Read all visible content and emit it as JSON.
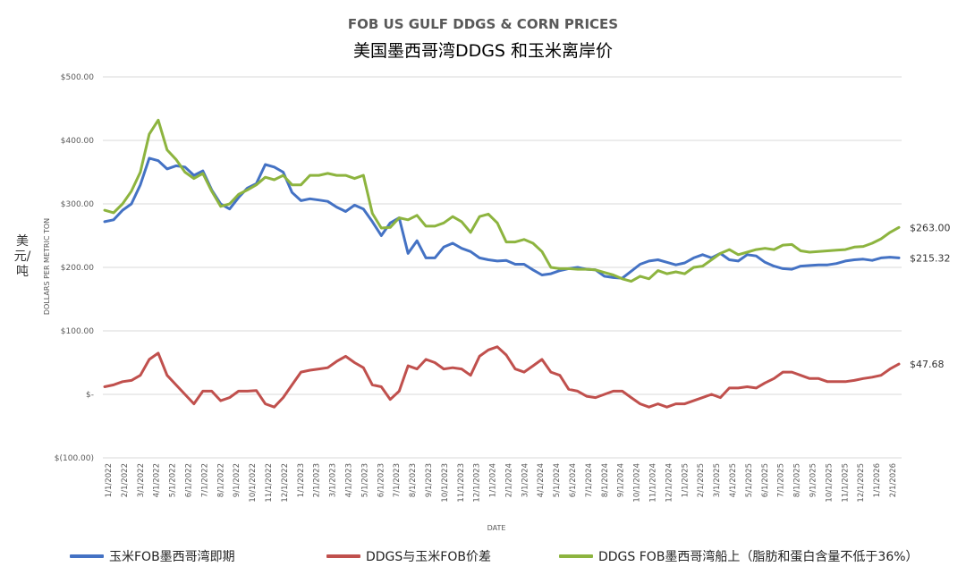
{
  "title": "FOB US GULF DDGS & CORN PRICES",
  "subtitle": "美国墨西哥湾DDGS 和玉米离岸价",
  "unit_label": "美元/吨",
  "colors": {
    "corn": "#4472C4",
    "spread": "#C0504D",
    "ddgs": "#8DB43F",
    "grid": "#D9D9D9",
    "axis_text": "#595959"
  },
  "legend": [
    {
      "name": "玉米FOB墨西哥湾即期",
      "color": "#4472C4"
    },
    {
      "name": "DDGS与玉米FOB价差",
      "color": "#C0504D"
    },
    {
      "name": "DDGS FOB墨西哥湾船上（脂肪和蛋白含量不低于36%）",
      "color": "#8DB43F"
    }
  ],
  "chart_data": {
    "type": "line",
    "title": "FOB US GULF DDGS & CORN PRICES",
    "subtitle": "美国墨西哥湾DDGS 和玉米离岸价",
    "xlabel": "DATE",
    "ylabel": "DOLLARS PER METRIC TON",
    "ylim": [
      -100,
      500
    ],
    "y_ticks": [
      500,
      400,
      300,
      200,
      100,
      0,
      -100
    ],
    "y_tick_labels": [
      "$500.00",
      "$400.00",
      "$300.00",
      "$200.00",
      "$100.00",
      "$-",
      "$(100.00)"
    ],
    "x_tick_labels": [
      "1/1/2022",
      "2/1/2022",
      "3/1/2022",
      "4/1/2022",
      "5/1/2022",
      "6/1/2022",
      "7/1/2022",
      "8/1/2022",
      "9/1/2022",
      "10/1/2022",
      "11/1/2022",
      "12/1/2022",
      "1/1/2023",
      "2/1/2023",
      "3/1/2023",
      "4/1/2023",
      "5/1/2023",
      "6/1/2023",
      "7/1/2023",
      "8/1/2023",
      "9/1/2023",
      "10/1/2023",
      "11/1/2023",
      "12/1/2023",
      "1/1/2024",
      "2/1/2024",
      "3/1/2024",
      "4/1/2024",
      "5/1/2024",
      "6/1/2024",
      "7/1/2024",
      "8/1/2024",
      "9/1/2024",
      "10/1/2024",
      "11/1/2024",
      "12/1/2024",
      "1/1/2025",
      "2/1/2025",
      "3/1/2025",
      "4/1/2025",
      "5/1/2025",
      "6/1/2025",
      "7/1/2025",
      "8/1/2025",
      "9/1/2025",
      "10/1/2025",
      "11/1/2025",
      "12/1/2025",
      "1/1/2026",
      "2/1/2026"
    ],
    "grid": true,
    "legend_position": "bottom",
    "series": [
      {
        "name": "玉米FOB墨西哥湾即期",
        "color": "#4472C4",
        "end_label": "$215.32",
        "values": [
          272,
          275,
          290,
          300,
          330,
          372,
          368,
          355,
          360,
          358,
          345,
          352,
          322,
          300,
          292,
          310,
          325,
          332,
          362,
          358,
          350,
          318,
          305,
          308,
          306,
          304,
          295,
          288,
          298,
          292,
          272,
          250,
          270,
          278,
          222,
          242,
          215,
          215,
          232,
          238,
          230,
          225,
          215,
          212,
          210,
          211,
          205,
          205,
          196,
          188,
          190,
          195,
          198,
          200,
          197,
          196,
          186,
          184,
          183,
          194,
          205,
          210,
          212,
          208,
          204,
          207,
          215,
          220,
          215,
          222,
          212,
          210,
          220,
          218,
          208,
          202,
          198,
          197,
          202,
          203,
          204,
          204,
          206,
          210,
          212,
          213,
          211,
          215,
          216,
          215
        ]
      },
      {
        "name": "DDGS FOB墨西哥湾船上（脂肪和蛋白含量不低于36%）",
        "color": "#8DB43F",
        "end_label": "$263.00",
        "values": [
          290,
          286,
          300,
          320,
          350,
          410,
          432,
          385,
          370,
          350,
          340,
          348,
          320,
          296,
          300,
          315,
          322,
          330,
          342,
          338,
          345,
          330,
          330,
          345,
          345,
          348,
          345,
          345,
          340,
          345,
          285,
          262,
          263,
          278,
          275,
          282,
          265,
          265,
          270,
          280,
          272,
          255,
          280,
          284,
          270,
          240,
          240,
          244,
          238,
          225,
          200,
          198,
          198,
          197,
          197,
          196,
          192,
          188,
          182,
          178,
          186,
          182,
          195,
          190,
          193,
          190,
          200,
          202,
          212,
          222,
          228,
          220,
          224,
          228,
          230,
          228,
          235,
          236,
          226,
          224,
          225,
          226,
          227,
          228,
          232,
          233,
          238,
          245,
          255,
          263
        ]
      },
      {
        "name": "DDGS与玉米FOB价差",
        "color": "#C0504D",
        "end_label": "$47.68",
        "values": [
          12,
          15,
          20,
          22,
          30,
          55,
          65,
          30,
          15,
          0,
          -15,
          5,
          5,
          -10,
          -5,
          5,
          5,
          6,
          -15,
          -20,
          -5,
          15,
          35,
          38,
          40,
          42,
          52,
          60,
          50,
          42,
          15,
          12,
          -8,
          5,
          45,
          40,
          55,
          50,
          40,
          42,
          40,
          30,
          60,
          70,
          75,
          62,
          40,
          35,
          45,
          55,
          35,
          30,
          8,
          5,
          -3,
          -5,
          0,
          5,
          5,
          -5,
          -15,
          -20,
          -15,
          -20,
          -15,
          -15,
          -10,
          -5,
          0,
          -5,
          10,
          10,
          12,
          10,
          18,
          25,
          35,
          35,
          30,
          25,
          25,
          20,
          20,
          20,
          22,
          25,
          27,
          30,
          40,
          47.68
        ]
      }
    ]
  }
}
